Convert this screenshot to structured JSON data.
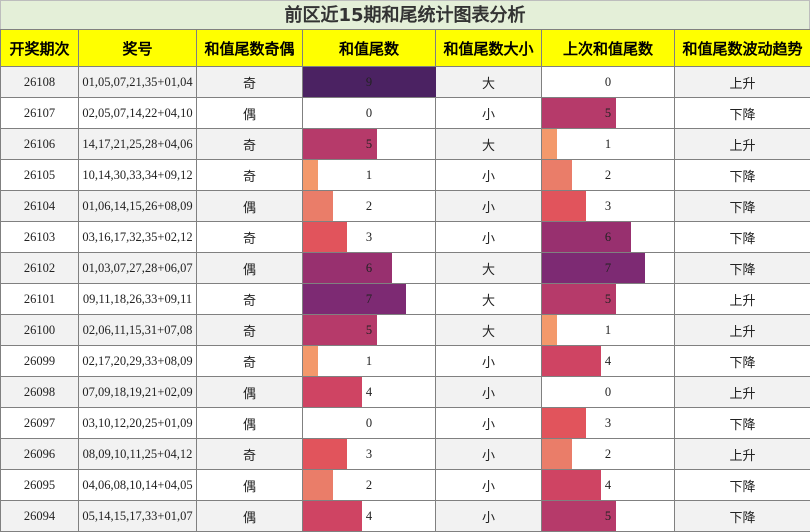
{
  "title": "前区近15期和尾统计图表分析",
  "headers": [
    "开奖期次",
    "奖号",
    "和值尾数奇偶",
    "和值尾数",
    "和值尾数大小",
    "上次和值尾数",
    "和值尾数波动趋势"
  ],
  "palette": {
    "0": "#ffffff",
    "1": "#f3996b",
    "2": "#ea7d69",
    "3": "#e1545c",
    "4": "#cf4463",
    "5": "#b63a6a",
    "6": "#98306f",
    "7": "#7d2a73",
    "8": "#5f256c",
    "9": "#4b2262"
  },
  "rows": [
    {
      "issue": "26108",
      "numbers": "01,05,07,21,35+01,04",
      "parity": "奇",
      "tail": 9,
      "size": "大",
      "prev_tail": 0,
      "trend": "上升"
    },
    {
      "issue": "26107",
      "numbers": "02,05,07,14,22+04,10",
      "parity": "偶",
      "tail": 0,
      "size": "小",
      "prev_tail": 5,
      "trend": "下降"
    },
    {
      "issue": "26106",
      "numbers": "14,17,21,25,28+04,06",
      "parity": "奇",
      "tail": 5,
      "size": "大",
      "prev_tail": 1,
      "trend": "上升"
    },
    {
      "issue": "26105",
      "numbers": "10,14,30,33,34+09,12",
      "parity": "奇",
      "tail": 1,
      "size": "小",
      "prev_tail": 2,
      "trend": "下降"
    },
    {
      "issue": "26104",
      "numbers": "01,06,14,15,26+08,09",
      "parity": "偶",
      "tail": 2,
      "size": "小",
      "prev_tail": 3,
      "trend": "下降"
    },
    {
      "issue": "26103",
      "numbers": "03,16,17,32,35+02,12",
      "parity": "奇",
      "tail": 3,
      "size": "小",
      "prev_tail": 6,
      "trend": "下降"
    },
    {
      "issue": "26102",
      "numbers": "01,03,07,27,28+06,07",
      "parity": "偶",
      "tail": 6,
      "size": "大",
      "prev_tail": 7,
      "trend": "下降"
    },
    {
      "issue": "26101",
      "numbers": "09,11,18,26,33+09,11",
      "parity": "奇",
      "tail": 7,
      "size": "大",
      "prev_tail": 5,
      "trend": "上升"
    },
    {
      "issue": "26100",
      "numbers": "02,06,11,15,31+07,08",
      "parity": "奇",
      "tail": 5,
      "size": "大",
      "prev_tail": 1,
      "trend": "上升"
    },
    {
      "issue": "26099",
      "numbers": "02,17,20,29,33+08,09",
      "parity": "奇",
      "tail": 1,
      "size": "小",
      "prev_tail": 4,
      "trend": "下降"
    },
    {
      "issue": "26098",
      "numbers": "07,09,18,19,21+02,09",
      "parity": "偶",
      "tail": 4,
      "size": "小",
      "prev_tail": 0,
      "trend": "上升"
    },
    {
      "issue": "26097",
      "numbers": "03,10,12,20,25+01,09",
      "parity": "偶",
      "tail": 0,
      "size": "小",
      "prev_tail": 3,
      "trend": "下降"
    },
    {
      "issue": "26096",
      "numbers": "08,09,10,11,25+04,12",
      "parity": "奇",
      "tail": 3,
      "size": "小",
      "prev_tail": 2,
      "trend": "上升"
    },
    {
      "issue": "26095",
      "numbers": "04,06,08,10,14+04,05",
      "parity": "偶",
      "tail": 2,
      "size": "小",
      "prev_tail": 4,
      "trend": "下降"
    },
    {
      "issue": "26094",
      "numbers": "05,14,15,17,33+01,07",
      "parity": "偶",
      "tail": 4,
      "size": "小",
      "prev_tail": 5,
      "trend": "下降"
    }
  ]
}
